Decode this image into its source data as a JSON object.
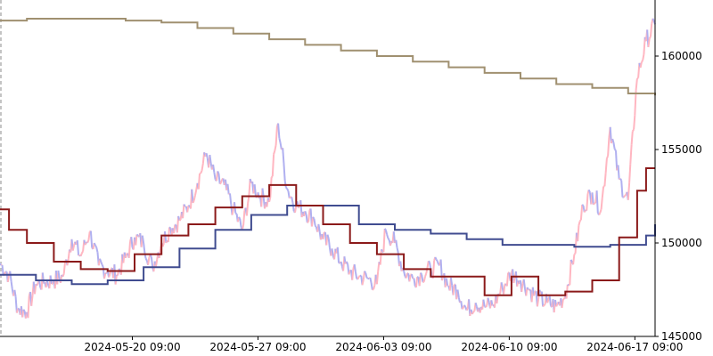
{
  "chart_data": {
    "type": "line",
    "title": "",
    "xlabel": "",
    "ylabel": "",
    "x_range": [
      "2024-05-13 00:00",
      "2024-06-18 12:00"
    ],
    "ylim": [
      145000,
      163000
    ],
    "x_ticks": [
      "2024-05-20 09:00",
      "2024-05-27 09:00",
      "2024-06-03 09:00",
      "2024-06-10 09:00",
      "2024-06-17 09:00"
    ],
    "y_ticks": [
      145000,
      150000,
      155000,
      160000
    ],
    "y_axis_position": "right",
    "grid": false,
    "legend": "none",
    "colors": {
      "price_up": "#ffb6c1",
      "price_down": "#b0b0f0",
      "long_ma": "#a09070",
      "mid_ma": "#404c90",
      "short_ma": "#8b1a1a"
    },
    "series": [
      {
        "kind": "price",
        "x": [
          "2024-05-13 00:00",
          "2024-05-13 12:00",
          "2024-05-14 00:00",
          "2024-05-14 12:00",
          "2024-05-15 00:00",
          "2024-05-15 12:00",
          "2024-05-16 00:00",
          "2024-05-16 12:00",
          "2024-05-17 00:00",
          "2024-05-17 12:00",
          "2024-05-18 00:00",
          "2024-05-18 12:00",
          "2024-05-19 00:00",
          "2024-05-19 12:00",
          "2024-05-20 00:00",
          "2024-05-20 12:00",
          "2024-05-21 00:00",
          "2024-05-21 12:00",
          "2024-05-22 00:00",
          "2024-05-22 12:00",
          "2024-05-23 00:00",
          "2024-05-23 12:00",
          "2024-05-24 00:00",
          "2024-05-24 12:00",
          "2024-05-25 00:00",
          "2024-05-25 12:00",
          "2024-05-26 00:00",
          "2024-05-26 12:00",
          "2024-05-27 00:00",
          "2024-05-27 12:00",
          "2024-05-28 00:00",
          "2024-05-28 12:00",
          "2024-05-29 00:00",
          "2024-05-29 12:00",
          "2024-05-30 00:00",
          "2024-05-30 12:00",
          "2024-05-31 00:00",
          "2024-05-31 12:00",
          "2024-06-01 00:00",
          "2024-06-01 12:00",
          "2024-06-02 00:00",
          "2024-06-02 12:00",
          "2024-06-03 00:00",
          "2024-06-03 12:00",
          "2024-06-04 00:00",
          "2024-06-04 12:00",
          "2024-06-05 00:00",
          "2024-06-05 12:00",
          "2024-06-06 00:00",
          "2024-06-06 12:00",
          "2024-06-07 00:00",
          "2024-06-07 12:00",
          "2024-06-08 00:00",
          "2024-06-08 12:00",
          "2024-06-09 00:00",
          "2024-06-09 12:00",
          "2024-06-10 00:00",
          "2024-06-10 12:00",
          "2024-06-11 00:00",
          "2024-06-11 12:00",
          "2024-06-12 00:00",
          "2024-06-12 12:00",
          "2024-06-13 00:00",
          "2024-06-13 12:00",
          "2024-06-14 00:00",
          "2024-06-14 12:00",
          "2024-06-15 00:00",
          "2024-06-15 12:00",
          "2024-06-16 00:00",
          "2024-06-16 12:00",
          "2024-06-17 00:00",
          "2024-06-17 12:00",
          "2024-06-18 00:00",
          "2024-06-18 12:00"
        ],
        "values": [
          148900,
          148300,
          146500,
          146300,
          147800,
          147900,
          148000,
          148200,
          150200,
          149300,
          150600,
          148800,
          148500,
          148300,
          149200,
          150300,
          150000,
          148700,
          150000,
          150800,
          151200,
          152000,
          153200,
          154800,
          153400,
          153100,
          151800,
          150700,
          153200,
          152500,
          152200,
          156400,
          152900,
          152000,
          151700,
          151300,
          150200,
          149700,
          149000,
          148500,
          148200,
          148100,
          147800,
          150700,
          150000,
          148500,
          148100,
          148300,
          148600,
          148800,
          147700,
          147500,
          146400,
          146800,
          146600,
          146700,
          147600,
          148400,
          148000,
          147500,
          147000,
          146800,
          146600,
          147200,
          149400,
          152000,
          152700,
          151800,
          156200,
          153400,
          152300,
          158800,
          160800,
          161700
        ]
      },
      {
        "kind": "long_ma",
        "x": [
          "2024-05-13 00:00",
          "2024-05-14 12:00",
          "2024-05-17 00:00",
          "2024-05-20 00:00",
          "2024-05-22 00:00",
          "2024-05-24 00:00",
          "2024-05-26 00:00",
          "2024-05-28 00:00",
          "2024-05-30 00:00",
          "2024-06-01 00:00",
          "2024-06-03 00:00",
          "2024-06-05 00:00",
          "2024-06-07 00:00",
          "2024-06-09 00:00",
          "2024-06-11 00:00",
          "2024-06-13 00:00",
          "2024-06-15 00:00",
          "2024-06-17 00:00",
          "2024-06-18 12:00"
        ],
        "values": [
          161900,
          162000,
          162000,
          161900,
          161800,
          161500,
          161200,
          160900,
          160600,
          160300,
          160000,
          159700,
          159400,
          159100,
          158800,
          158500,
          158300,
          158000,
          157900
        ]
      },
      {
        "kind": "mid_ma",
        "x": [
          "2024-05-13 00:00",
          "2024-05-15 00:00",
          "2024-05-17 00:00",
          "2024-05-19 00:00",
          "2024-05-21 00:00",
          "2024-05-23 00:00",
          "2024-05-25 00:00",
          "2024-05-27 00:00",
          "2024-05-29 00:00",
          "2024-05-31 00:00",
          "2024-06-02 00:00",
          "2024-06-04 00:00",
          "2024-06-06 00:00",
          "2024-06-08 00:00",
          "2024-06-10 00:00",
          "2024-06-12 00:00",
          "2024-06-14 00:00",
          "2024-06-16 00:00",
          "2024-06-18 00:00",
          "2024-06-18 12:00"
        ],
        "values": [
          148300,
          148000,
          147800,
          148000,
          148700,
          149700,
          150700,
          151500,
          152000,
          152000,
          151000,
          150700,
          150500,
          150200,
          149900,
          149900,
          149800,
          149900,
          150400,
          151000
        ]
      },
      {
        "kind": "short_ma",
        "x": [
          "2024-05-13 00:00",
          "2024-05-13 12:00",
          "2024-05-14 12:00",
          "2024-05-16 00:00",
          "2024-05-17 12:00",
          "2024-05-19 00:00",
          "2024-05-20 12:00",
          "2024-05-22 00:00",
          "2024-05-23 12:00",
          "2024-05-25 00:00",
          "2024-05-26 12:00",
          "2024-05-28 00:00",
          "2024-05-29 12:00",
          "2024-05-31 00:00",
          "2024-06-01 12:00",
          "2024-06-03 00:00",
          "2024-06-04 12:00",
          "2024-06-06 00:00",
          "2024-06-07 12:00",
          "2024-06-09 00:00",
          "2024-06-10 12:00",
          "2024-06-12 00:00",
          "2024-06-13 12:00",
          "2024-06-15 00:00",
          "2024-06-16 12:00",
          "2024-06-17 12:00",
          "2024-06-18 00:00",
          "2024-06-18 12:00"
        ],
        "values": [
          151800,
          150700,
          150000,
          149000,
          148600,
          148500,
          149400,
          150400,
          151000,
          151900,
          152500,
          153100,
          152000,
          151000,
          150000,
          149400,
          148600,
          148200,
          148200,
          147200,
          148200,
          147200,
          147400,
          148000,
          150300,
          152800,
          154000,
          154000
        ]
      }
    ]
  }
}
